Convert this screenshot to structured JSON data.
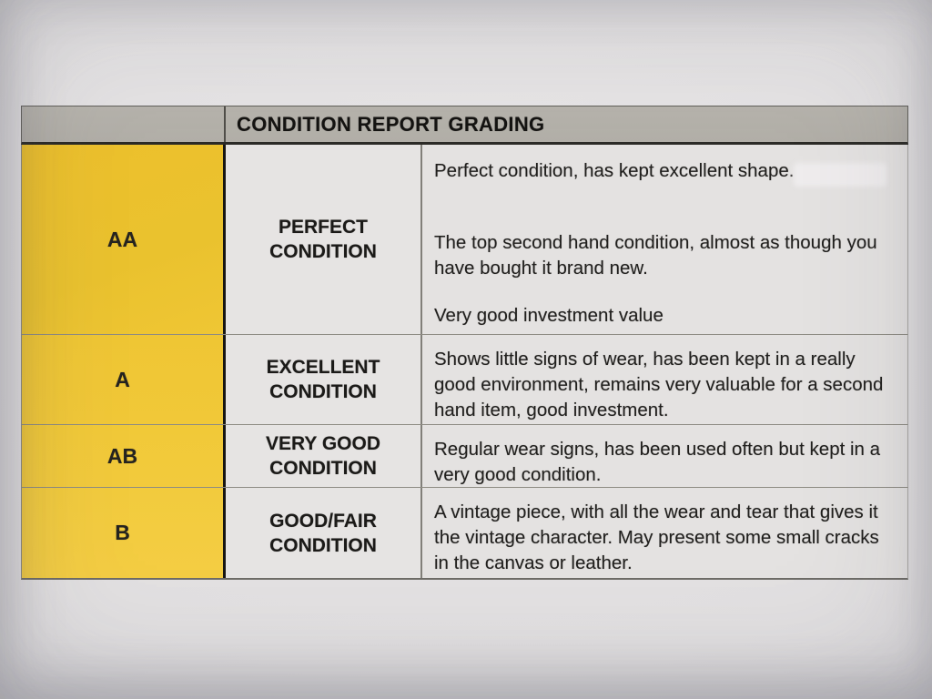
{
  "table": {
    "title": "CONDITION REPORT GRADING",
    "rows": [
      {
        "grade": "AA",
        "condition": "PERFECT\nCONDITION",
        "paragraphs": [
          "Perfect condition, has kept excellent shape.",
          "The top second hand condition, almost as though you have bought it brand new.",
          "Very good investment value"
        ]
      },
      {
        "grade": "A",
        "condition": "EXCELLENT\nCONDITION",
        "paragraphs": [
          "Shows little signs of wear, has been kept in a really good environment, remains very valuable for a second hand item, good investment."
        ]
      },
      {
        "grade": "AB",
        "condition": "VERY GOOD\nCONDITION",
        "paragraphs": [
          "Regular wear signs, has been used often but kept in a very good condition."
        ]
      },
      {
        "grade": "B",
        "condition": "GOOD/FAIR\nCONDITION",
        "paragraphs": [
          "A vintage piece, with all the wear and tear that gives it the vintage character. May present some small cracks in the canvas or leather."
        ]
      }
    ],
    "colors": {
      "grade_column_yellow": "#eec431",
      "header_gray": "#b3b0a9",
      "cell_paper": "#e4e2e1",
      "text": "#1d1c1a"
    }
  }
}
